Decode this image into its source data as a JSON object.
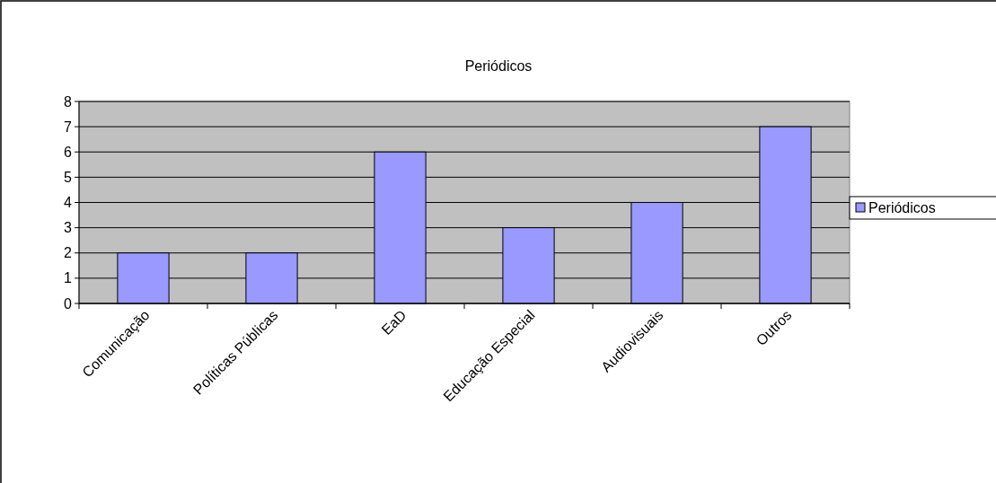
{
  "chart_data": {
    "type": "bar",
    "title": "Periódicos",
    "categories": [
      "Comunicação",
      "Políticas Públicas",
      "EaD",
      "Educação Especial",
      "Audiovisuais",
      "Outros"
    ],
    "series": [
      {
        "name": "Periódicos",
        "color": "#9999ff",
        "values": [
          2,
          2,
          6,
          3,
          4,
          7
        ]
      }
    ],
    "ylim": [
      0,
      8
    ],
    "yticks": [
      0,
      1,
      2,
      3,
      4,
      5,
      6,
      7,
      8
    ],
    "grid": "y",
    "legend": "right"
  }
}
